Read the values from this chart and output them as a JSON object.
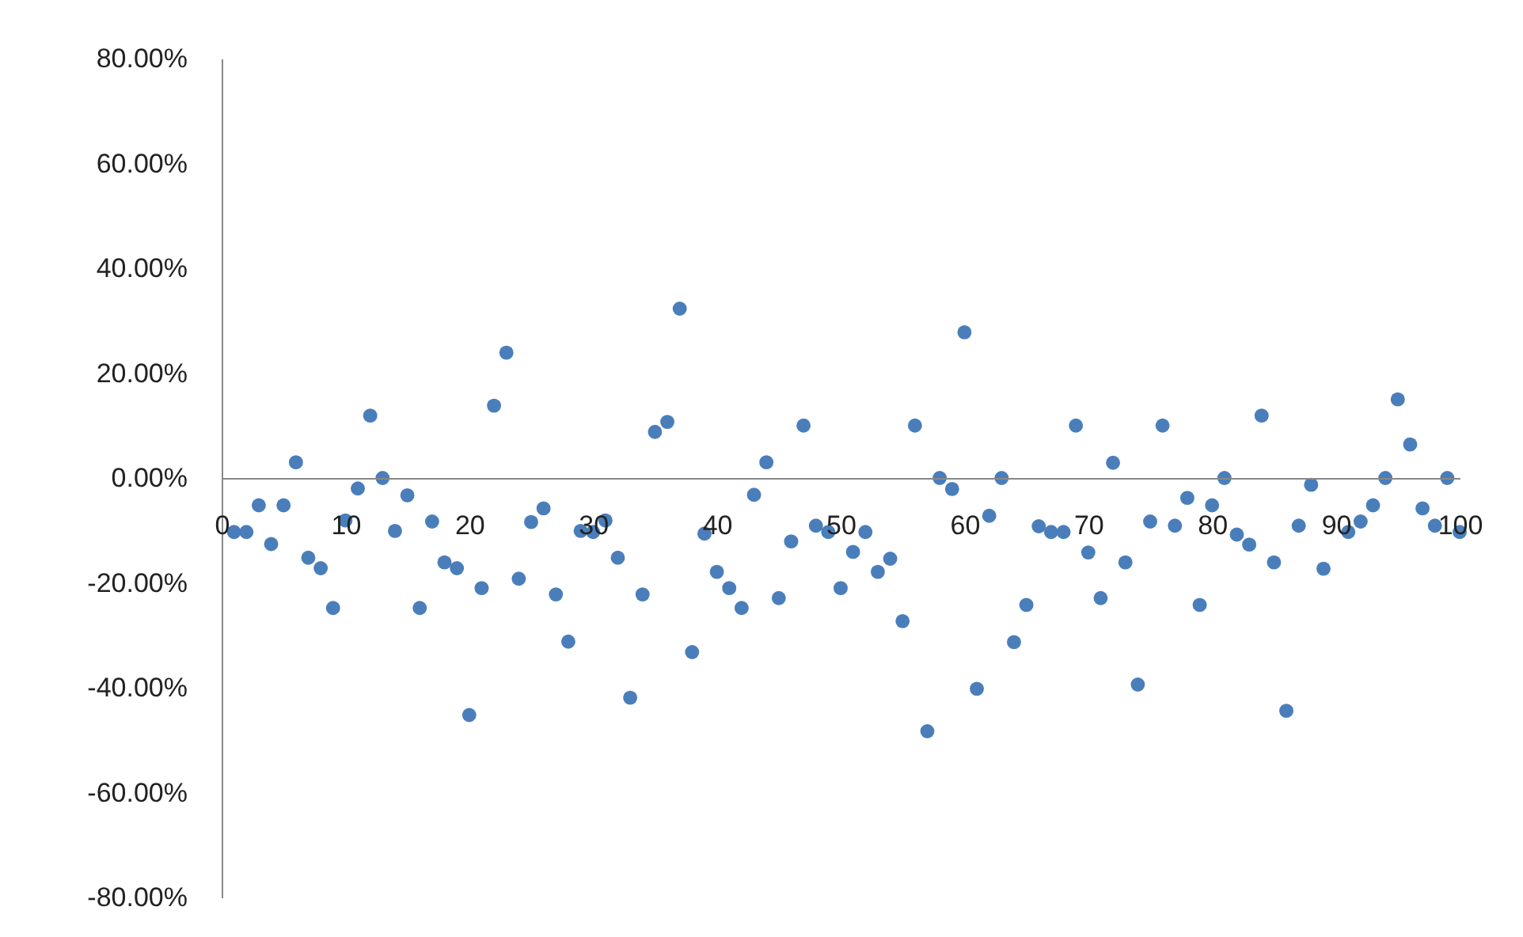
{
  "chart_data": {
    "type": "scatter",
    "marker": "circle",
    "grid": false,
    "legend": false,
    "xlim": [
      0,
      100
    ],
    "xticks": [
      0,
      10,
      20,
      30,
      40,
      50,
      60,
      70,
      80,
      90,
      100
    ],
    "ylim": [
      -80,
      80
    ],
    "yticks": [
      {
        "value": -80,
        "label": "-80.00%"
      },
      {
        "value": -60,
        "label": "-60.00%"
      },
      {
        "value": -40,
        "label": "-40.00%"
      },
      {
        "value": -20,
        "label": "-20.00%"
      },
      {
        "value": 0,
        "label": "0.00%"
      },
      {
        "value": 20,
        "label": "20.00%"
      },
      {
        "value": 40,
        "label": "40.00%"
      },
      {
        "value": 60,
        "label": "60.00%"
      },
      {
        "value": 80,
        "label": "80.00%"
      }
    ],
    "series": [
      {
        "color": "#4a7ebb",
        "x": [
          1,
          2,
          3,
          4,
          5,
          6,
          7,
          8,
          9,
          10,
          11,
          12,
          13,
          14,
          15,
          16,
          17,
          18,
          19,
          20,
          21,
          22,
          23,
          24,
          25,
          26,
          27,
          28,
          29,
          30,
          31,
          32,
          33,
          34,
          35,
          36,
          37,
          38,
          39,
          40,
          41,
          42,
          43,
          44,
          45,
          46,
          47,
          48,
          49,
          50,
          51,
          52,
          53,
          54,
          55,
          56,
          57,
          58,
          59,
          60,
          61,
          62,
          63,
          64,
          65,
          66,
          67,
          68,
          69,
          70,
          71,
          72,
          73,
          74,
          75,
          76,
          77,
          78,
          79,
          80,
          81,
          82,
          83,
          84,
          85,
          86,
          87,
          88,
          89,
          91,
          92,
          93,
          94,
          95,
          96,
          97,
          98,
          99,
          100
        ],
        "values": [
          -10.3,
          -10.3,
          -5.2,
          -12.6,
          -5.2,
          3,
          -15.2,
          -17.2,
          -24.8,
          -8.1,
          -2,
          11.9,
          0,
          -10.1,
          -3.3,
          -24.8,
          -8.3,
          -16.1,
          -17.2,
          -45.2,
          -21,
          13.8,
          23.9,
          -19.2,
          -8.4,
          -5.8,
          -22.2,
          -31.2,
          -10.1,
          -10.3,
          -8.1,
          -15.2,
          -41.9,
          -22.2,
          8.8,
          10.7,
          32.3,
          -33.2,
          -10.6,
          -17.9,
          -21,
          -24.8,
          -3.2,
          3,
          -22.9,
          -12.1,
          10,
          -9.1,
          -10.3,
          -21,
          -14.1,
          -10.3,
          -17.9,
          -15.4,
          -27.3,
          10,
          -48.3,
          0,
          -2.1,
          27.8,
          -40.2,
          -7.2,
          0,
          -31.3,
          -24.2,
          -9.2,
          -10.3,
          -10.3,
          10,
          -14.2,
          -22.9,
          2.9,
          -16.1,
          -39.4,
          -8.3,
          10,
          -9.1,
          -3.8,
          -24.2,
          -5.2,
          0,
          -10.8,
          -12.7,
          11.9,
          -16.1,
          -44.4,
          -9.1,
          -1.3,
          -17.3,
          -10.3,
          -8.3,
          -5.2,
          0,
          15,
          6.4,
          -5.8,
          -9.1,
          0,
          -10.3
        ]
      }
    ]
  }
}
